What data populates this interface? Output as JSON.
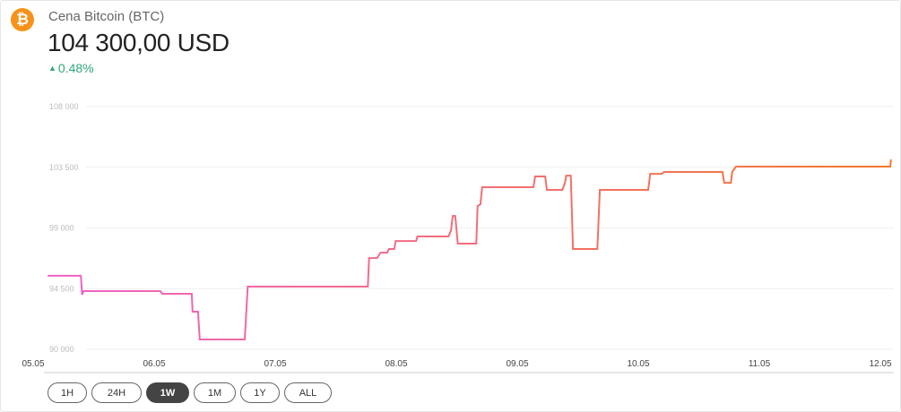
{
  "header": {
    "icon": "bitcoin-icon",
    "logo_glyph": "₿",
    "title": "Cena Bitcoin (BTC)",
    "price": "104 300,00 USD",
    "change": "0.48%",
    "change_direction": "up",
    "change_color": "#2fa777"
  },
  "ranges": [
    {
      "label": "1H",
      "active": false
    },
    {
      "label": "24H",
      "active": false
    },
    {
      "label": "1W",
      "active": true
    },
    {
      "label": "1M",
      "active": false
    },
    {
      "label": "1Y",
      "active": false
    },
    {
      "label": "ALL",
      "active": false
    }
  ],
  "chart_data": {
    "type": "line",
    "title": "",
    "xlabel": "",
    "ylabel": "",
    "ylim": [
      90000,
      108000
    ],
    "y_ticks": [
      108000,
      103500,
      99000,
      94500,
      90000
    ],
    "y_tick_labels": [
      "108 000",
      "103 500",
      "99 000",
      "94 500",
      "90 000"
    ],
    "x_tick_labels": [
      "05.05",
      "06.05",
      "07.05",
      "08.05",
      "09.05",
      "10.05",
      "11.05",
      "12.05"
    ],
    "grid": "horizontal",
    "legend": "none",
    "colors": {
      "start": "#f062c8",
      "end": "#f5792a"
    },
    "points": [
      [
        "05.05 02:20",
        95450
      ],
      [
        "05.05 08:55",
        95450
      ],
      [
        "05.05 09:10",
        94050
      ],
      [
        "05.05 09:25",
        94320
      ],
      [
        "06.05 00:40",
        94320
      ],
      [
        "06.05 01:05",
        94120
      ],
      [
        "06.05 06:55",
        94120
      ],
      [
        "06.05 07:05",
        92790
      ],
      [
        "06.05 08:10",
        92790
      ],
      [
        "06.05 08:30",
        90730
      ],
      [
        "06.05 17:25",
        90730
      ],
      [
        "06.05 18:00",
        94650
      ],
      [
        "07.05 17:50",
        94650
      ],
      [
        "07.05 18:05",
        96770
      ],
      [
        "07.05 19:40",
        96770
      ],
      [
        "07.05 20:20",
        97170
      ],
      [
        "07.05 21:40",
        97170
      ],
      [
        "07.05 22:00",
        97440
      ],
      [
        "07.05 23:05",
        97440
      ],
      [
        "07.05 23:20",
        98030
      ],
      [
        "08.05 03:25",
        98030
      ],
      [
        "08.05 03:40",
        98370
      ],
      [
        "08.05 09:50",
        98370
      ],
      [
        "08.05 10:20",
        98830
      ],
      [
        "08.05 10:40",
        99890
      ],
      [
        "08.05 11:10",
        99890
      ],
      [
        "08.05 11:40",
        97840
      ],
      [
        "08.05 15:20",
        97840
      ],
      [
        "08.05 15:35",
        100620
      ],
      [
        "08.05 16:10",
        100760
      ],
      [
        "08.05 16:30",
        102020
      ],
      [
        "09.05 02:40",
        102020
      ],
      [
        "09.05 03:00",
        102820
      ],
      [
        "09.05 05:00",
        102820
      ],
      [
        "09.05 05:20",
        101820
      ],
      [
        "09.05 08:25",
        101820
      ],
      [
        "09.05 08:55",
        102350
      ],
      [
        "09.05 09:10",
        102880
      ],
      [
        "09.05 10:05",
        102880
      ],
      [
        "09.05 10:30",
        97440
      ],
      [
        "09.05 15:20",
        97440
      ],
      [
        "09.05 15:50",
        101820
      ],
      [
        "10.05 01:25",
        101820
      ],
      [
        "10.05 01:50",
        103010
      ],
      [
        "10.05 04:05",
        103010
      ],
      [
        "10.05 04:35",
        103150
      ],
      [
        "10.05 16:10",
        103150
      ],
      [
        "10.05 16:30",
        102350
      ],
      [
        "10.05 17:50",
        102350
      ],
      [
        "10.05 18:05",
        103150
      ],
      [
        "10.05 18:50",
        103550
      ],
      [
        "12.05 01:25",
        103550
      ],
      [
        "12.05 01:35",
        104080
      ]
    ]
  }
}
